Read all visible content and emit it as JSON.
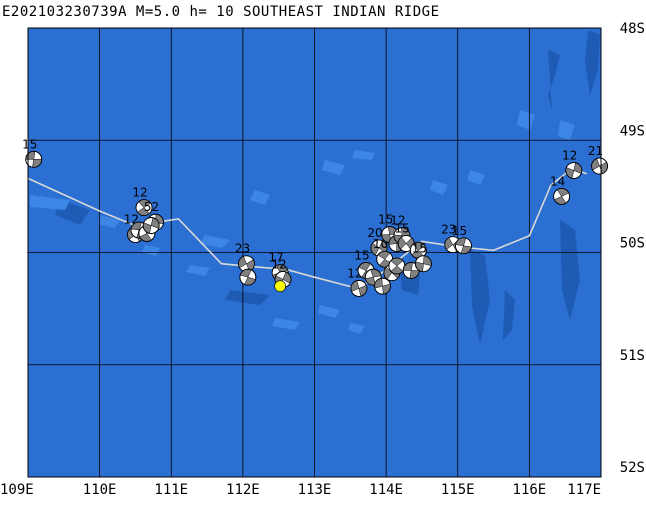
{
  "header": {
    "title": "E202103230739A M=5.0 h= 10 SOUTHEAST INDIAN RIDGE"
  },
  "map": {
    "lon_range": [
      109,
      117
    ],
    "lat_range": [
      -52,
      -48
    ],
    "lon_ticks": [
      {
        "lon": 109,
        "label": "109E"
      },
      {
        "lon": 110,
        "label": "110E"
      },
      {
        "lon": 111,
        "label": "111E"
      },
      {
        "lon": 112,
        "label": "112E"
      },
      {
        "lon": 113,
        "label": "113E"
      },
      {
        "lon": 114,
        "label": "114E"
      },
      {
        "lon": 115,
        "label": "115E"
      },
      {
        "lon": 116,
        "label": "116E"
      },
      {
        "lon": 117,
        "label": "117E"
      }
    ],
    "lat_ticks": [
      {
        "lat": -48,
        "label": "48S"
      },
      {
        "lat": -49,
        "label": "49S"
      },
      {
        "lat": -50,
        "label": "50S"
      },
      {
        "lat": -51,
        "label": "51S"
      },
      {
        "lat": -52,
        "label": "52S"
      }
    ],
    "colors": {
      "ocean": "#2a6fd1",
      "ocean_light": "#3d86e6",
      "ocean_dark": "#1e5bb5",
      "grid": "#000000",
      "plate_boundary": "#d8d8d8",
      "mechanism_compression": "#808080",
      "mechanism_dilatation": "#ffffff",
      "target_event": "#ffff00"
    },
    "plate_boundary": [
      [
        109.0,
        -49.34
      ],
      [
        110.0,
        -49.63
      ],
      [
        110.5,
        -49.76
      ],
      [
        111.1,
        -49.7
      ],
      [
        111.7,
        -50.1
      ],
      [
        112.2,
        -50.13
      ],
      [
        112.6,
        -50.15
      ],
      [
        113.0,
        -50.22
      ],
      [
        113.6,
        -50.32
      ],
      [
        113.9,
        -50.2
      ],
      [
        114.2,
        -50.05
      ],
      [
        114.5,
        -49.9
      ],
      [
        115.0,
        -49.95
      ],
      [
        115.5,
        -49.98
      ],
      [
        116.0,
        -49.85
      ],
      [
        116.3,
        -49.4
      ],
      [
        116.6,
        -49.25
      ],
      [
        116.8,
        -49.3
      ]
    ],
    "target_event": {
      "lon": 112.52,
      "lat": -50.3
    },
    "mechanisms": [
      {
        "lon": 109.08,
        "lat": -49.17,
        "depth": "15"
      },
      {
        "lon": 110.62,
        "lat": -49.6,
        "depth": "12"
      },
      {
        "lon": 110.78,
        "lat": -49.73,
        "depth": "52"
      },
      {
        "lon": 110.5,
        "lat": -49.84,
        "depth": "12"
      },
      {
        "lon": 110.55,
        "lat": -49.8,
        "depth": ""
      },
      {
        "lon": 110.66,
        "lat": -49.83,
        "depth": ""
      },
      {
        "lon": 110.72,
        "lat": -49.76,
        "depth": ""
      },
      {
        "lon": 112.05,
        "lat": -50.1,
        "depth": "23"
      },
      {
        "lon": 112.07,
        "lat": -50.22,
        "depth": ""
      },
      {
        "lon": 112.52,
        "lat": -50.18,
        "depth": "17"
      },
      {
        "lon": 112.56,
        "lat": -50.24,
        "depth": "12"
      },
      {
        "lon": 113.62,
        "lat": -50.32,
        "depth": "12"
      },
      {
        "lon": 113.72,
        "lat": -50.16,
        "depth": "15"
      },
      {
        "lon": 113.82,
        "lat": -50.22,
        "depth": ""
      },
      {
        "lon": 113.9,
        "lat": -49.96,
        "depth": "20"
      },
      {
        "lon": 113.95,
        "lat": -50.3,
        "depth": ""
      },
      {
        "lon": 113.98,
        "lat": -50.06,
        "depth": "10"
      },
      {
        "lon": 114.05,
        "lat": -49.84,
        "depth": "15"
      },
      {
        "lon": 114.08,
        "lat": -50.18,
        "depth": ""
      },
      {
        "lon": 114.15,
        "lat": -49.92,
        "depth": ""
      },
      {
        "lon": 114.15,
        "lat": -50.12,
        "depth": ""
      },
      {
        "lon": 114.22,
        "lat": -49.85,
        "depth": "12"
      },
      {
        "lon": 114.28,
        "lat": -49.92,
        "depth": "15"
      },
      {
        "lon": 114.35,
        "lat": -50.16,
        "depth": ""
      },
      {
        "lon": 114.45,
        "lat": -49.98,
        "depth": ""
      },
      {
        "lon": 114.52,
        "lat": -50.1,
        "depth": "15"
      },
      {
        "lon": 114.93,
        "lat": -49.93,
        "depth": "23"
      },
      {
        "lon": 115.08,
        "lat": -49.94,
        "depth": "15"
      },
      {
        "lon": 116.45,
        "lat": -49.5,
        "depth": "14"
      },
      {
        "lon": 116.62,
        "lat": -49.27,
        "depth": "12"
      },
      {
        "lon": 116.98,
        "lat": -49.23,
        "depth": "21"
      }
    ]
  }
}
